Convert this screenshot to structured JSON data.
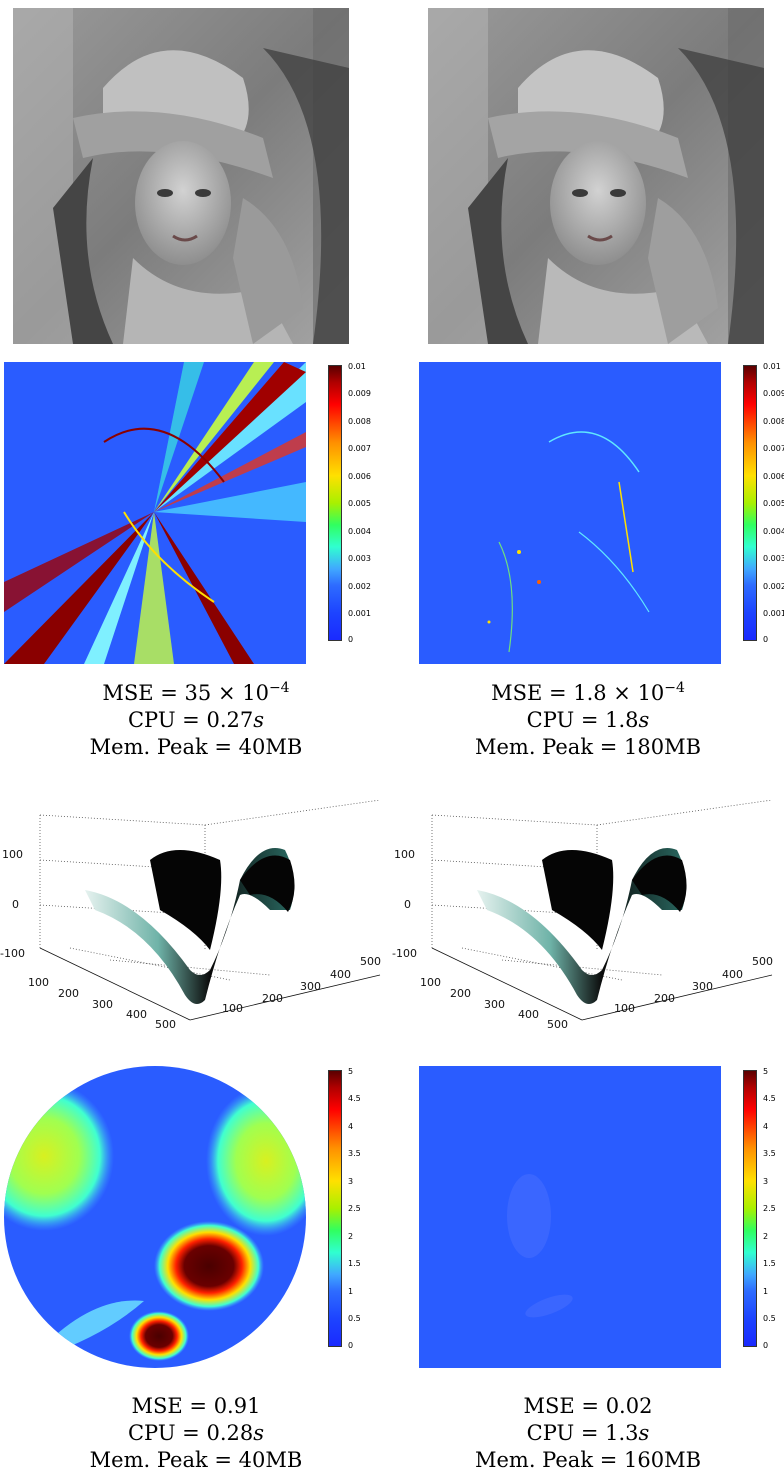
{
  "figure": {
    "colorbar_1": {
      "ticks": [
        "0.01",
        "0.009",
        "0.008",
        "0.007",
        "0.006",
        "0.005",
        "0.004",
        "0.003",
        "0.002",
        "0.001",
        "0"
      ]
    },
    "colorbar_2": {
      "ticks": [
        "5",
        "4.5",
        "4",
        "3.5",
        "3",
        "2.5",
        "2",
        "1.5",
        "1",
        "0.5",
        "0"
      ]
    },
    "plot3d": {
      "z_ticks": [
        "100",
        "0",
        "-100"
      ],
      "x_ticks": [
        "100",
        "200",
        "300",
        "400",
        "500"
      ],
      "y_ticks": [
        "100",
        "200",
        "300",
        "400",
        "500"
      ]
    },
    "captions": {
      "top_left": {
        "mse": "MSE = 35 × 10",
        "mse_exp": "−4",
        "cpu": "CPU = 0.27",
        "cpu_unit": "s",
        "mem": "Mem. Peak = 40MB"
      },
      "top_right": {
        "mse": "MSE = 1.8 × 10",
        "mse_exp": "−4",
        "cpu": "CPU = 1.8",
        "cpu_unit": "s",
        "mem": "Mem. Peak = 180MB"
      },
      "bottom_left": {
        "mse": "MSE = 0.91",
        "cpu": "CPU = 0.28",
        "cpu_unit": "s",
        "mem": "Mem. Peak = 40MB"
      },
      "bottom_right": {
        "mse": "MSE = 0.02",
        "cpu": "CPU = 1.3",
        "cpu_unit": "s",
        "mem": "Mem. Peak = 160MB"
      }
    }
  }
}
